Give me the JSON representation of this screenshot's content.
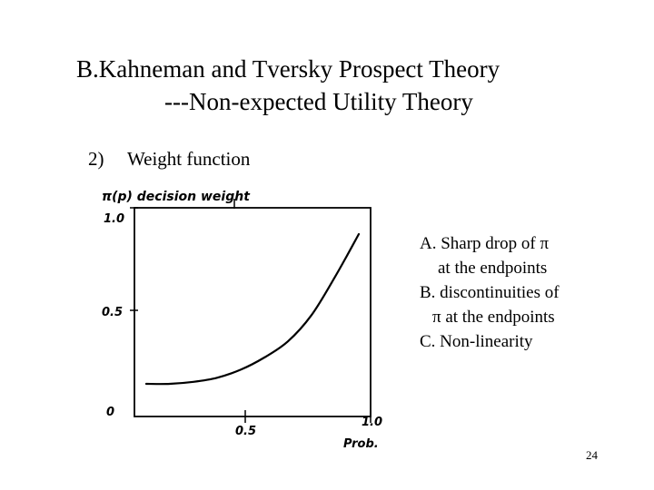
{
  "slide": {
    "title_line1": "B.Kahneman and Tversky Prospect Theory",
    "title_line2": "---Non-expected Utility Theory",
    "section_number": "2)",
    "section_label": "Weight function",
    "notes": {
      "a_line1": "A. Sharp drop of π",
      "a_line2": "at the endpoints",
      "b_line1": "B. discontinuities of",
      "b_line2": "π at the endpoints",
      "c_line1": "C. Non-linearity"
    },
    "page_number": "24"
  },
  "chart_data": {
    "type": "line",
    "title": "π(p) decision weight",
    "xlabel": "Prob.",
    "ylabel": "π(p)",
    "xlim": [
      0,
      1.0
    ],
    "ylim": [
      0,
      1.0
    ],
    "x_ticks": [
      "0.5",
      "1.0"
    ],
    "y_ticks": [
      "1.0",
      "0.5",
      "0"
    ],
    "series": [
      {
        "values": [
          {
            "x": 0.05,
            "y": 0.13
          },
          {
            "x": 0.15,
            "y": 0.13
          },
          {
            "x": 0.25,
            "y": 0.14
          },
          {
            "x": 0.35,
            "y": 0.16
          },
          {
            "x": 0.45,
            "y": 0.2
          },
          {
            "x": 0.55,
            "y": 0.26
          },
          {
            "x": 0.65,
            "y": 0.34
          },
          {
            "x": 0.75,
            "y": 0.47
          },
          {
            "x": 0.85,
            "y": 0.66
          },
          {
            "x": 0.95,
            "y": 0.87
          }
        ]
      }
    ]
  }
}
